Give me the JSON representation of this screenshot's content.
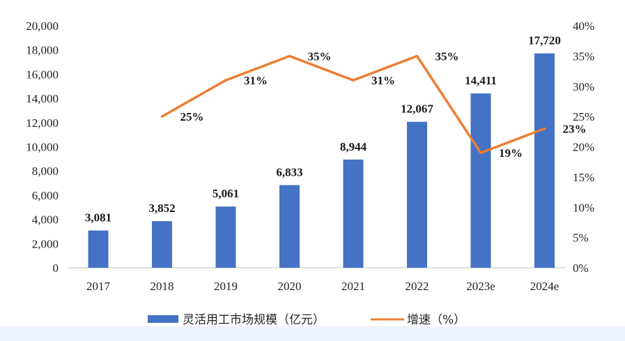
{
  "chart_data": {
    "type": "bar",
    "categories": [
      "2017",
      "2018",
      "2019",
      "2020",
      "2021",
      "2022",
      "2023e",
      "2024e"
    ],
    "series": [
      {
        "name": "灵活用工市场规模（亿元）",
        "type": "bar",
        "axis": "left",
        "color": "#4472c4",
        "values": [
          3081,
          3852,
          5061,
          6833,
          8944,
          12067,
          14411,
          17720
        ],
        "labels": [
          "3,081",
          "3,852",
          "5,061",
          "6,833",
          "8,944",
          "12,067",
          "14,411",
          "17,720"
        ]
      },
      {
        "name": "增速（%）",
        "type": "line",
        "axis": "right",
        "color": "#ed7d31",
        "values": [
          null,
          25,
          31,
          35,
          31,
          35,
          19,
          23
        ],
        "labels": [
          "",
          "25%",
          "31%",
          "35%",
          "31%",
          "35%",
          "19%",
          "23%"
        ]
      }
    ],
    "left_axis": {
      "ylim": [
        0,
        20000
      ],
      "ticks": [
        "0",
        "2,000",
        "4,000",
        "6,000",
        "8,000",
        "10,000",
        "12,000",
        "14,000",
        "16,000",
        "18,000",
        "20,000"
      ]
    },
    "right_axis": {
      "ylim": [
        0,
        40
      ],
      "ticks": [
        "0%",
        "5%",
        "10%",
        "15%",
        "20%",
        "25%",
        "30%",
        "35%",
        "40%"
      ]
    },
    "grid": false,
    "legend_position": "bottom"
  }
}
